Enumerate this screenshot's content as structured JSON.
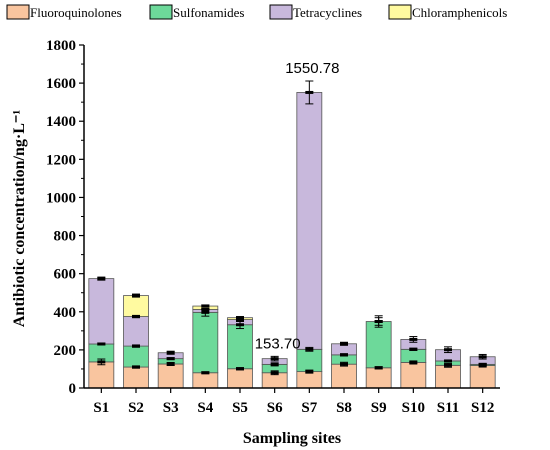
{
  "chart_data": {
    "type": "bar",
    "stacked": true,
    "categories": [
      "S1",
      "S2",
      "S3",
      "S4",
      "S5",
      "S6",
      "S7",
      "S8",
      "S9",
      "S10",
      "S11",
      "S12"
    ],
    "series": [
      {
        "name": "Fluoroquinolones",
        "color": "#f9c59f",
        "values": [
          137,
          110,
          126,
          80,
          101,
          80,
          86,
          125,
          106,
          134,
          119,
          118
        ],
        "errors": [
          15,
          6,
          8,
          5,
          6,
          10,
          8,
          10,
          6,
          8,
          10,
          8
        ]
      },
      {
        "name": "Sulfonamides",
        "color": "#6dd99a",
        "values": [
          94,
          110,
          28,
          317,
          231,
          44,
          117,
          49,
          243,
          69,
          23,
          6
        ],
        "errors": [
          5,
          6,
          5,
          20,
          20,
          8,
          10,
          6,
          20,
          6,
          5,
          5
        ]
      },
      {
        "name": "Tetracyclines",
        "color": "#c8b8dc",
        "values": [
          343,
          155,
          31,
          15,
          27,
          30,
          1348,
          58,
          0,
          52,
          59,
          40
        ],
        "errors": [
          8,
          6,
          8,
          0,
          10,
          12,
          60,
          8,
          0,
          15,
          15,
          12
        ]
      },
      {
        "name": "Chloramphenicols",
        "color": "#fffaa0",
        "values": [
          0,
          110,
          0,
          18,
          10,
          0,
          0,
          0,
          0,
          0,
          0,
          0
        ],
        "errors": [
          0,
          8,
          0,
          6,
          6,
          0,
          0,
          0,
          30,
          0,
          0,
          0
        ]
      }
    ],
    "annotations": [
      {
        "category": "S6",
        "text": "153.70"
      },
      {
        "category": "S7",
        "text": "1550.78"
      }
    ],
    "xlabel": "Sampling sites",
    "ylabel": "Antibiotic concentration/ng·L⁻¹",
    "ylim": [
      0,
      1800
    ],
    "yticks": [
      "0",
      "200",
      "400",
      "600",
      "800",
      "1000",
      "1200",
      "1400",
      "1600",
      "1800"
    ],
    "grid": false,
    "legend": "top"
  }
}
